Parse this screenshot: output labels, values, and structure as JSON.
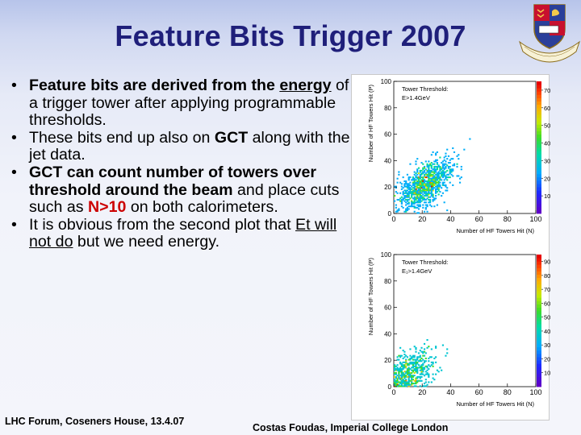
{
  "slide": {
    "title": "Feature Bits Trigger 2007",
    "bullets": [
      {
        "segments": [
          {
            "t": "Feature bits are derived from the ",
            "s": "b"
          },
          {
            "t": "energy",
            "s": "b u"
          },
          {
            "t": " of a trigger tower after applying programmable thresholds.",
            "s": ""
          }
        ]
      },
      {
        "segments": [
          {
            "t": "These bits end up also on ",
            "s": ""
          },
          {
            "t": "GCT",
            "s": "b"
          },
          {
            "t": " along with the jet data.",
            "s": ""
          }
        ]
      },
      {
        "segments": [
          {
            "t": "GCT can count number of towers over threshold around the beam",
            "s": "b"
          },
          {
            "t": " and place cuts such as ",
            "s": ""
          },
          {
            "t": "N>10",
            "s": "red"
          },
          {
            "t": " on both calorimeters.",
            "s": ""
          }
        ]
      },
      {
        "segments": [
          {
            "t": "It is obvious from the second plot that ",
            "s": ""
          },
          {
            "t": "Et will not do",
            "s": "u"
          },
          {
            "t": " but we need energy.",
            "s": ""
          }
        ]
      }
    ],
    "footer_left": "LHC Forum, Coseners House, 13.4.07",
    "footer_right": "Costas Foudas, Imperial College London"
  },
  "crest": {
    "icon": "imperial-college-crest-icon",
    "motto": "SCIENTIA IMPERII DECUS ET TUTAMEN"
  },
  "colors": {
    "title": "#1f1f7a",
    "accent_red": "#cc0000"
  },
  "chart_data": [
    {
      "type": "heatmap",
      "annotation_lines": [
        "Tower Threshold:",
        "E>1.4GeV"
      ],
      "xlabel": "Number of HF Towers Hit (N)",
      "ylabel": "Number of HF Towers Hit (P)",
      "xlim": [
        0,
        100
      ],
      "ylim": [
        0,
        100
      ],
      "x_ticks": [
        "0",
        "20",
        "40",
        "60",
        "80",
        "100"
      ],
      "y_ticks": [
        "0",
        "20",
        "40",
        "60",
        "80",
        "100"
      ],
      "colorbar_ticks": [
        "10",
        "20",
        "30",
        "40",
        "50",
        "60",
        "70"
      ],
      "colorbar_range": [
        0,
        75
      ],
      "cluster": {
        "center": [
          22,
          22
        ],
        "spread_major": 12,
        "spread_minor": 6,
        "angle_deg": 45,
        "peak": 72,
        "counts": 1100
      }
    },
    {
      "type": "heatmap",
      "annotation_lines": [
        "Tower Threshold:",
        "E₁>1.4GeV"
      ],
      "xlabel": "Number of HF Towers Hit (N)",
      "ylabel": "Number of HF Towers Hit (P)",
      "xlim": [
        0,
        100
      ],
      "ylim": [
        0,
        100
      ],
      "x_ticks": [
        "0",
        "20",
        "40",
        "60",
        "80",
        "100"
      ],
      "y_ticks": [
        "0",
        "20",
        "40",
        "60",
        "80",
        "100"
      ],
      "colorbar_ticks": [
        "100",
        "200",
        "300",
        "400",
        "500",
        "600",
        "700",
        "800",
        "900"
      ],
      "colorbar_range": [
        0,
        950
      ],
      "cluster": {
        "center": [
          6,
          6
        ],
        "spread_major": 13,
        "spread_minor": 7,
        "angle_deg": 45,
        "peak": 920,
        "counts": 900
      }
    }
  ]
}
